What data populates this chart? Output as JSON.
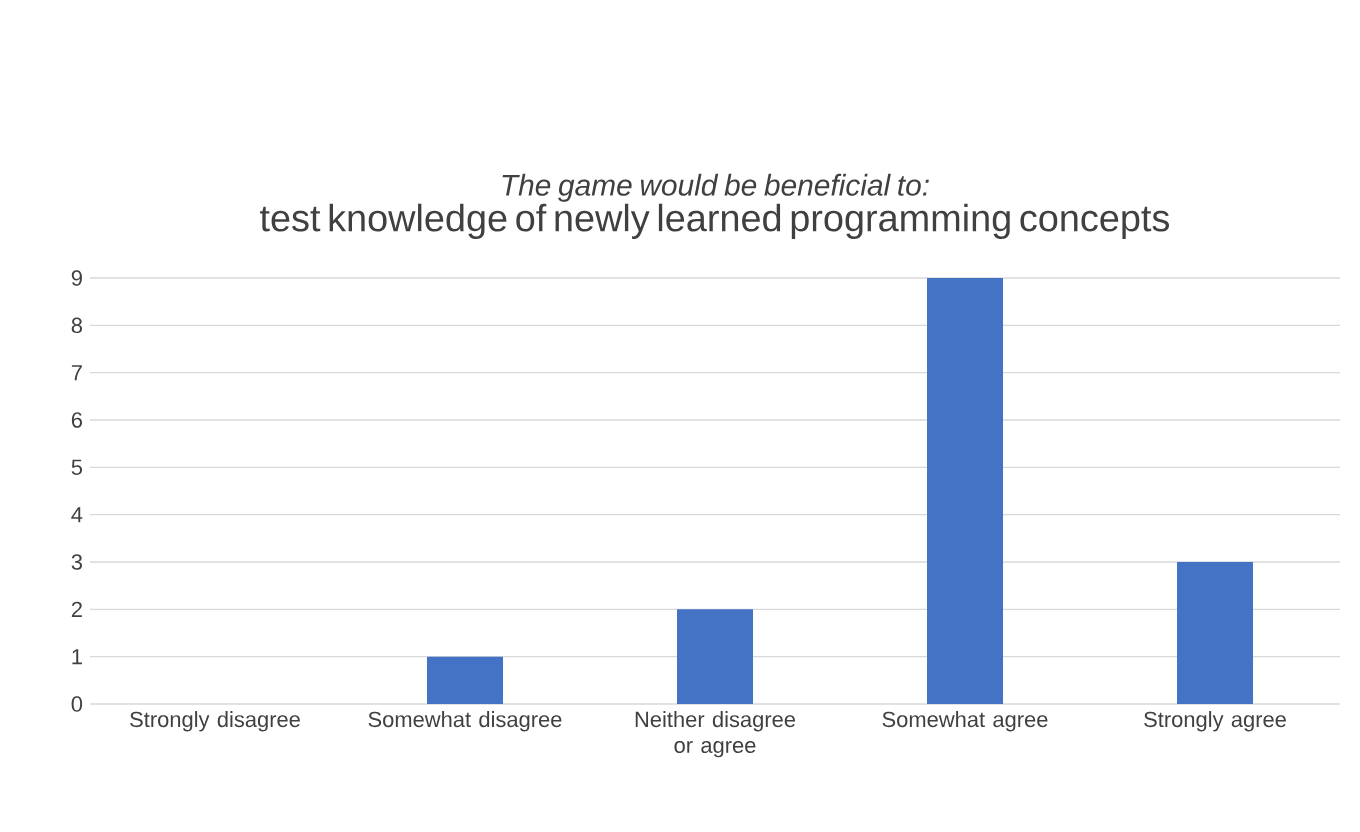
{
  "chart_data": {
    "type": "bar",
    "title": "The game would be beneficial to:",
    "subtitle": "test knowledge of newly learned programming concepts",
    "categories": [
      "Strongly disagree",
      "Somewhat disagree",
      "Neither disagree or agree",
      "Somewhat agree",
      "Strongly agree"
    ],
    "values": [
      0,
      1,
      2,
      9,
      3
    ],
    "color": "#4472c4",
    "ylim": [
      0,
      9
    ],
    "yticks": [
      0,
      1,
      2,
      3,
      4,
      5,
      6,
      7,
      8,
      9
    ],
    "grid": "y"
  }
}
